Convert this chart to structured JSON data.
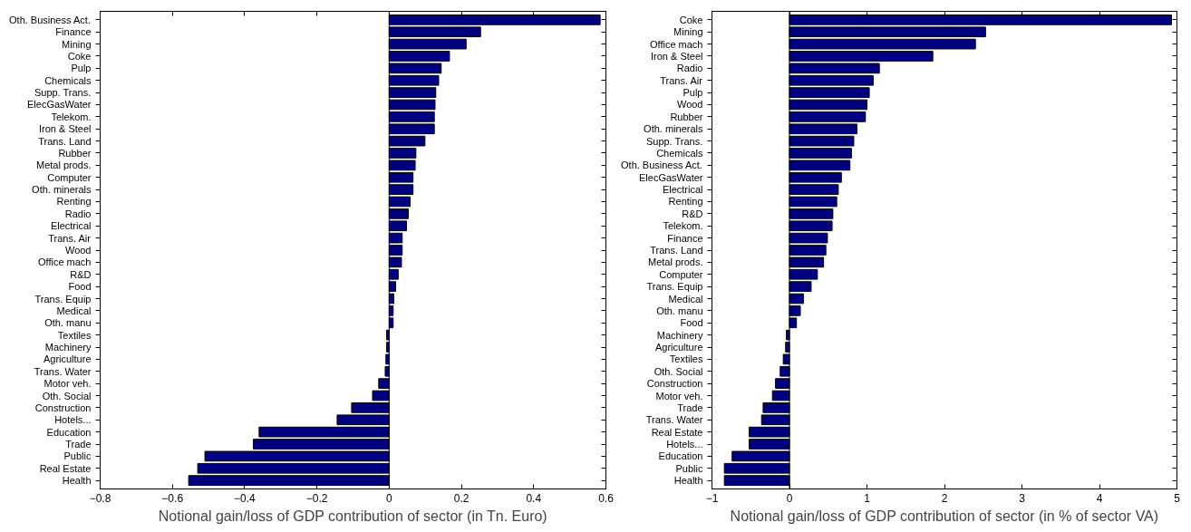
{
  "chart_data": [
    {
      "type": "bar",
      "orientation": "horizontal",
      "color": "#000080",
      "xlabel": "Notional gain/loss of GDP contribution of sector (in Tn. Euro)",
      "categories": [
        "Oth. Business Act.",
        "Finance",
        "Mining",
        "Coke",
        "Pulp",
        "Chemicals",
        "Supp. Trans.",
        "ElecGasWater",
        "Telekom.",
        "Iron & Steel",
        "Trans. Land",
        "Rubber",
        "Metal prods.",
        "Computer",
        "Oth. minerals",
        "Renting",
        "Radio",
        "Electrical",
        "Trans. Air",
        "Wood",
        "Office mach",
        "R&D",
        "Food",
        "Trans. Equip",
        "Medical",
        "Oth. manu",
        "Textiles",
        "Machinery",
        "Agriculture",
        "Trans. Water",
        "Motor veh.",
        "Oth. Social",
        "Construction",
        "Hotels...",
        "Education",
        "Trade",
        "Public",
        "Real Estate",
        "Health"
      ],
      "values": [
        0.584,
        0.253,
        0.213,
        0.167,
        0.144,
        0.137,
        0.129,
        0.127,
        0.125,
        0.125,
        0.099,
        0.074,
        0.072,
        0.066,
        0.066,
        0.058,
        0.053,
        0.048,
        0.036,
        0.036,
        0.034,
        0.025,
        0.018,
        0.013,
        0.011,
        0.011,
        -0.007,
        -0.007,
        -0.009,
        -0.011,
        -0.029,
        -0.046,
        -0.104,
        -0.144,
        -0.36,
        -0.376,
        -0.51,
        -0.53,
        -0.555
      ],
      "xlim": [
        -0.8,
        0.6
      ],
      "xticks": [
        -0.8,
        -0.6,
        -0.4,
        -0.2,
        0,
        0.2,
        0.4,
        0.6
      ]
    },
    {
      "type": "bar",
      "orientation": "horizontal",
      "color": "#000080",
      "xlabel": "Notional gain/loss of GDP contribution of sector (in % of sector VA)",
      "categories": [
        "Coke",
        "Mining",
        "Office mach",
        "Iron & Steel",
        "Radio",
        "Trans. Air",
        "Pulp",
        "Wood",
        "Rubber",
        "Oth. minerals",
        "Supp. Trans.",
        "Chemicals",
        "Oth. Business Act.",
        "ElecGasWater",
        "Electrical",
        "Renting",
        "R&D",
        "Telekom.",
        "Finance",
        "Trans. Land",
        "Metal prods.",
        "Computer",
        "Trans. Equip",
        "Medical",
        "Oth. manu",
        "Food",
        "Machinery",
        "Agriculture",
        "Textiles",
        "Oth. Social",
        "Construction",
        "Motor veh.",
        "Trade",
        "Trans. Water",
        "Real Estate",
        "Hotels...",
        "Education",
        "Public",
        "Health"
      ],
      "values": [
        4.93,
        2.53,
        2.4,
        1.85,
        1.16,
        1.08,
        1.03,
        1.0,
        0.98,
        0.87,
        0.83,
        0.8,
        0.78,
        0.67,
        0.63,
        0.61,
        0.56,
        0.55,
        0.49,
        0.47,
        0.44,
        0.36,
        0.28,
        0.18,
        0.14,
        0.09,
        -0.04,
        -0.05,
        -0.08,
        -0.12,
        -0.18,
        -0.22,
        -0.34,
        -0.36,
        -0.52,
        -0.52,
        -0.74,
        -0.84,
        -0.84
      ],
      "xlim": [
        -1,
        5
      ],
      "xticks": [
        -1,
        0,
        1,
        2,
        3,
        4,
        5
      ]
    }
  ]
}
